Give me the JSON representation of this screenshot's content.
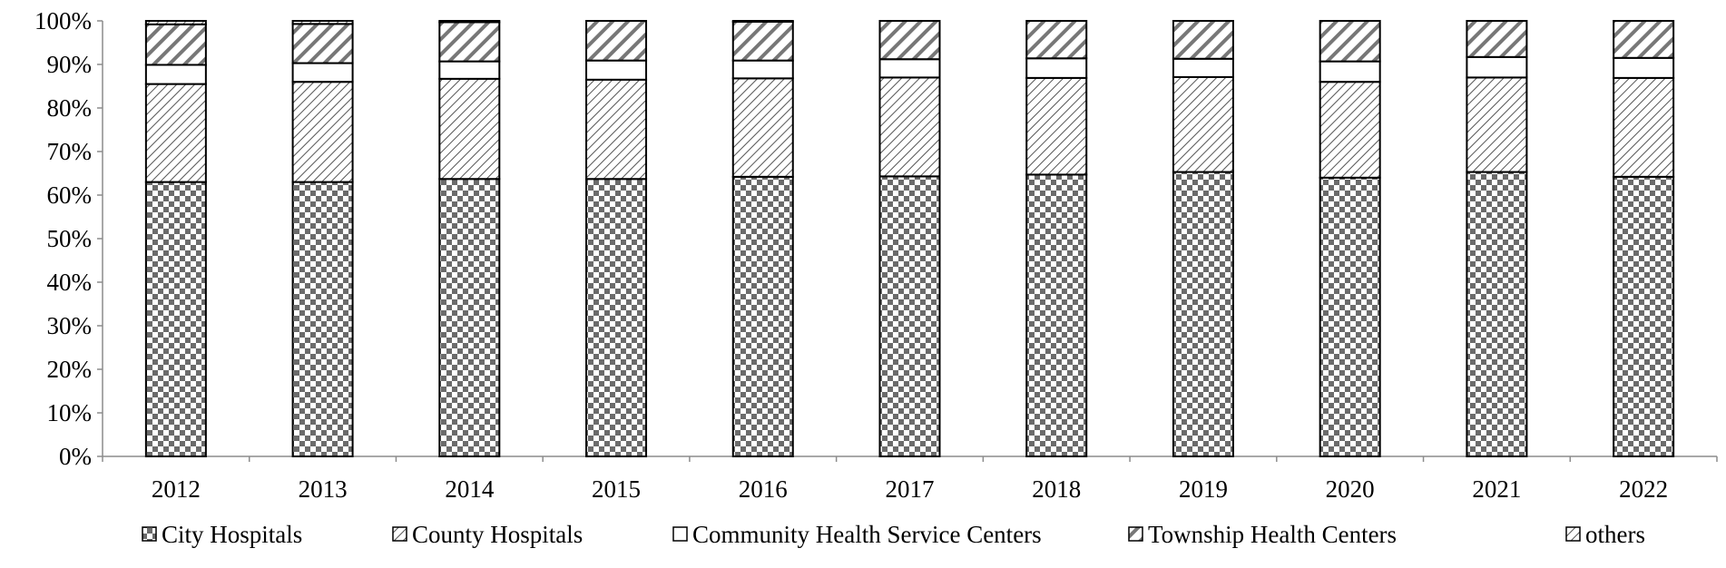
{
  "chart_data": {
    "type": "bar",
    "stacked": true,
    "normalized": true,
    "categories": [
      "2012",
      "2013",
      "2014",
      "2015",
      "2016",
      "2017",
      "2018",
      "2019",
      "2020",
      "2021",
      "2022"
    ],
    "series": [
      {
        "name": "City Hospitals",
        "values": [
          63.0,
          63.0,
          63.7,
          63.7,
          64.2,
          64.3,
          64.7,
          65.3,
          64.0,
          65.3,
          64.2
        ],
        "pattern": "checker"
      },
      {
        "name": "County Hospitals",
        "values": [
          22.5,
          23.0,
          23.0,
          22.8,
          22.6,
          22.7,
          22.2,
          21.8,
          22.0,
          21.7,
          22.7
        ],
        "pattern": "thin-diagonal"
      },
      {
        "name": "Community Health Service Centers",
        "values": [
          4.4,
          4.3,
          4.0,
          4.4,
          4.1,
          4.2,
          4.5,
          4.2,
          4.7,
          4.7,
          4.6
        ],
        "pattern": "solid-white"
      },
      {
        "name": "Township Health Centers",
        "values": [
          9.3,
          9.0,
          9.0,
          9.1,
          8.9,
          8.8,
          8.6,
          8.7,
          9.3,
          8.3,
          8.5
        ],
        "pattern": "thick-diagonal"
      },
      {
        "name": "others",
        "values": [
          0.8,
          0.7,
          0.3,
          0.0,
          0.2,
          0.0,
          0.0,
          0.0,
          0.0,
          0.0,
          0.0
        ],
        "pattern": "thin-diagonal"
      }
    ],
    "y_ticks": [
      "0%",
      "10%",
      "20%",
      "30%",
      "40%",
      "50%",
      "60%",
      "70%",
      "80%",
      "90%",
      "100%"
    ],
    "ylim": [
      0,
      100
    ],
    "grid": false,
    "legend_position": "bottom",
    "title": "",
    "xlabel": "",
    "ylabel": ""
  }
}
